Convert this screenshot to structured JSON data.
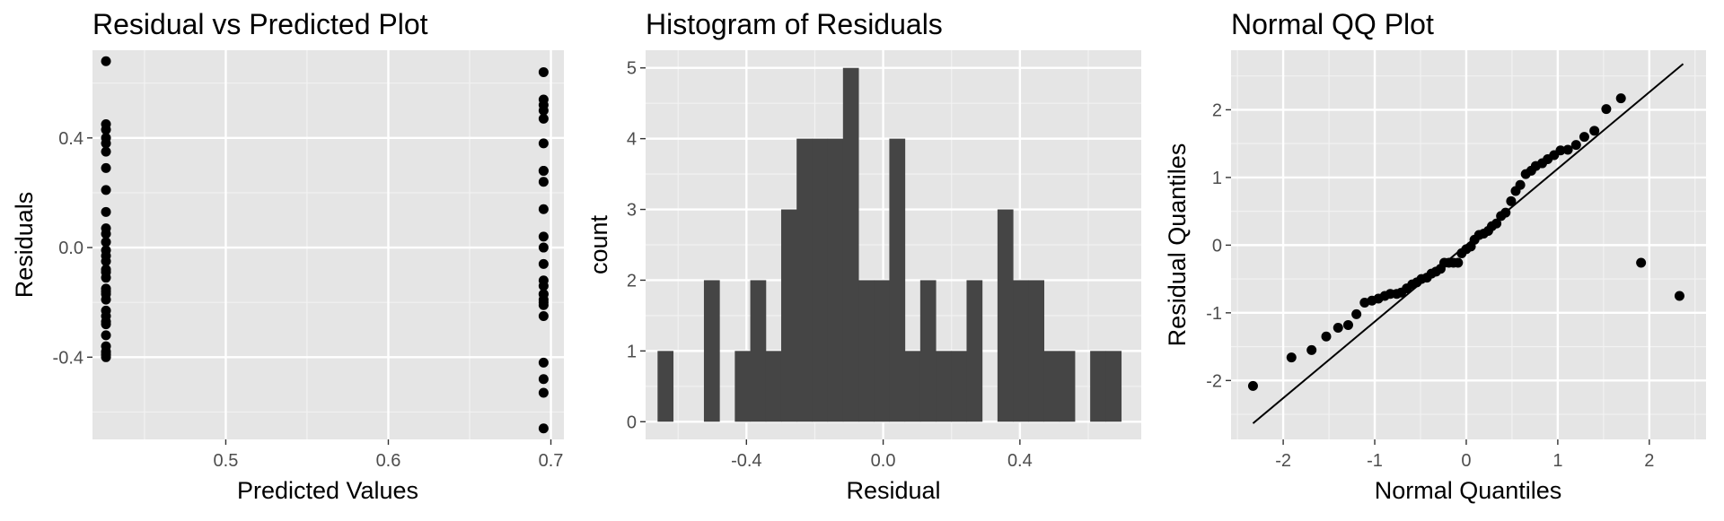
{
  "chart_data": [
    {
      "type": "scatter",
      "title": "Residual vs Predicted Plot",
      "xlabel": "Predicted Values",
      "ylabel": "Residuals",
      "xlim": [
        0.418,
        0.708
      ],
      "ylim": [
        -0.7,
        0.72
      ],
      "x_ticks": [
        0.5,
        0.6,
        0.7
      ],
      "x_tick_labels": [
        "0.5",
        "0.6",
        "0.7"
      ],
      "y_ticks": [
        -0.4,
        0.0,
        0.4
      ],
      "y_tick_labels": [
        "-0.4",
        "0.0",
        "0.4"
      ],
      "grid": true,
      "series": [
        {
          "x": [
            0.4263,
            0.4263,
            0.4263,
            0.4263,
            0.4263,
            0.4263,
            0.4263,
            0.4263,
            0.4263,
            0.4263,
            0.4263,
            0.4263,
            0.4263,
            0.4263,
            0.4263,
            0.4263,
            0.4263,
            0.4263,
            0.4263,
            0.4263,
            0.4263,
            0.4263,
            0.4263,
            0.4263,
            0.4263,
            0.4263,
            0.4263,
            0.4263,
            0.4263,
            0.4263,
            0.4263,
            0.6955,
            0.6955,
            0.6955,
            0.6955,
            0.6955,
            0.6955,
            0.6955,
            0.6955,
            0.6955,
            0.6955,
            0.6955,
            0.6955,
            0.6955,
            0.6955,
            0.6955,
            0.6955,
            0.6955,
            0.6955,
            0.6955,
            0.6955,
            0.6955,
            0.6955,
            0.6955,
            0.6955,
            0.6955
          ],
          "y": [
            0.68,
            0.45,
            0.43,
            0.4,
            0.38,
            0.35,
            0.29,
            0.21,
            0.13,
            0.07,
            0.05,
            0.02,
            -0.01,
            -0.03,
            -0.05,
            -0.08,
            -0.09,
            -0.11,
            -0.15,
            -0.16,
            -0.17,
            -0.19,
            -0.23,
            -0.25,
            -0.27,
            -0.28,
            -0.32,
            -0.36,
            -0.38,
            -0.39,
            -0.4,
            0.64,
            0.54,
            0.52,
            0.5,
            0.47,
            0.38,
            0.28,
            0.24,
            0.14,
            0.04,
            0.0,
            -0.06,
            -0.12,
            -0.14,
            -0.17,
            -0.19,
            -0.21,
            -0.25,
            -0.42,
            -0.48,
            -0.53,
            -0.66,
            -0.2,
            -0.17,
            0.28
          ]
        }
      ]
    },
    {
      "type": "bar",
      "title": "Histogram of Residuals",
      "xlabel": "Residual",
      "ylabel": "count",
      "xlim": [
        -0.695,
        0.755
      ],
      "ylim": [
        -0.25,
        5.25
      ],
      "x_ticks": [
        -0.4,
        0.0,
        0.4
      ],
      "x_tick_labels": [
        "-0.4",
        "0.0",
        "0.4"
      ],
      "y_ticks": [
        0,
        1,
        2,
        3,
        4,
        5
      ],
      "y_tick_labels": [
        "0",
        "1",
        "2",
        "3",
        "4",
        "5"
      ],
      "grid": true,
      "bin_start": -0.66,
      "bin_width": 0.0452,
      "counts": [
        1,
        0,
        0,
        2,
        0,
        1,
        2,
        1,
        3,
        4,
        4,
        4,
        5,
        2,
        2,
        4,
        1,
        2,
        1,
        1,
        2,
        0,
        3,
        2,
        2,
        1,
        1,
        0,
        1,
        1
      ],
      "bar_color": "#454545"
    },
    {
      "type": "scatter",
      "title": "Normal QQ Plot",
      "xlabel": "Normal Quantiles",
      "ylabel": "Residual Quantiles",
      "xlim": [
        -2.57,
        2.62
      ],
      "ylim": [
        -2.87,
        2.88
      ],
      "x_ticks": [
        -2,
        -1,
        0,
        1,
        2
      ],
      "x_tick_labels": [
        "-2",
        "-1",
        "0",
        "1",
        "2"
      ],
      "y_ticks": [
        -2,
        -1,
        0,
        1,
        2
      ],
      "y_tick_labels": [
        "-2",
        "-1",
        "0",
        "1",
        "2"
      ],
      "grid": true,
      "series": [
        {
          "x": [
            -2.33,
            -1.91,
            -1.69,
            -1.53,
            -1.4,
            -1.29,
            -1.2,
            -1.11,
            -1.03,
            -0.96,
            -0.89,
            -0.83,
            -0.76,
            -0.71,
            -0.65,
            -0.59,
            -0.54,
            -0.49,
            -0.43,
            -0.38,
            -0.33,
            -0.28,
            -0.24,
            -0.19,
            -0.14,
            -0.09,
            -0.05,
            0.0,
            0.05,
            0.09,
            0.14,
            0.19,
            0.24,
            0.28,
            0.33,
            0.38,
            0.43,
            0.49,
            0.54,
            0.59,
            0.65,
            0.71,
            0.76,
            0.83,
            0.89,
            0.96,
            1.03,
            1.11,
            1.2,
            1.29,
            1.4,
            1.53,
            1.69,
            1.91,
            2.33
          ],
          "y": [
            -2.08,
            -1.66,
            -1.55,
            -1.35,
            -1.22,
            -1.18,
            -1.02,
            -0.85,
            -0.82,
            -0.79,
            -0.75,
            -0.72,
            -0.72,
            -0.7,
            -0.64,
            -0.58,
            -0.55,
            -0.5,
            -0.48,
            -0.42,
            -0.39,
            -0.35,
            -0.26,
            -0.26,
            -0.26,
            -0.26,
            -0.12,
            -0.06,
            -0.02,
            0.08,
            0.15,
            0.17,
            0.21,
            0.28,
            0.32,
            0.43,
            0.48,
            0.65,
            0.8,
            0.89,
            1.05,
            1.1,
            1.17,
            1.21,
            1.27,
            1.33,
            1.4,
            1.41,
            1.48,
            1.6,
            1.69,
            2.01,
            2.17,
            -0.26,
            -0.75
          ]
        }
      ],
      "ref_line": {
        "intercept": 0.0,
        "slope": 1.13
      }
    }
  ]
}
